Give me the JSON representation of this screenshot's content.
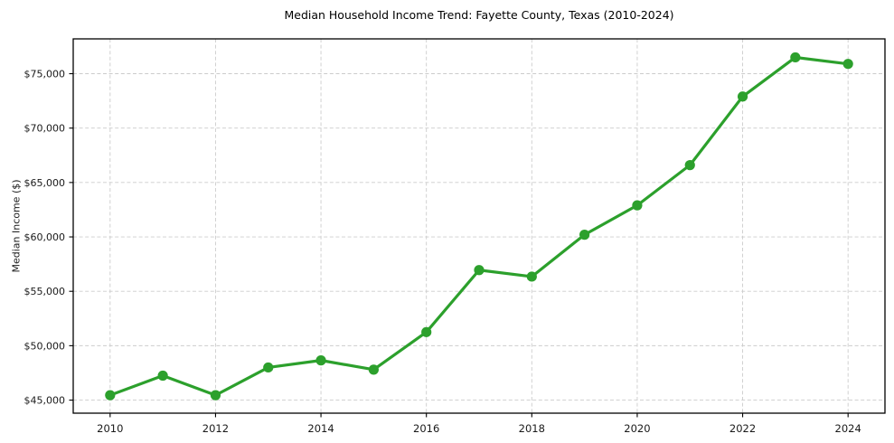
{
  "chart_data": {
    "type": "line",
    "title": "Median Household Income Trend: Fayette County, Texas (2010-2024)",
    "xlabel": "",
    "ylabel": "Median Income ($)",
    "x": [
      2010,
      2011,
      2012,
      2013,
      2014,
      2015,
      2016,
      2017,
      2018,
      2019,
      2020,
      2021,
      2022,
      2023,
      2024
    ],
    "series": [
      {
        "name": "Median Household Income",
        "values": [
          45450,
          47250,
          45450,
          48000,
          48650,
          47800,
          51250,
          56950,
          56350,
          60200,
          62900,
          66600,
          72900,
          76500,
          75900
        ]
      }
    ],
    "xticks": {
      "values": [
        2010,
        2012,
        2014,
        2016,
        2018,
        2020,
        2022,
        2024
      ],
      "labels": [
        "2010",
        "2012",
        "2014",
        "2016",
        "2018",
        "2020",
        "2022",
        "2024"
      ]
    },
    "yticks": {
      "values": [
        45000,
        50000,
        55000,
        60000,
        65000,
        70000,
        75000
      ],
      "labels": [
        "$45,000",
        "$50,000",
        "$55,000",
        "$60,000",
        "$65,000",
        "$70,000",
        "$75,000"
      ]
    },
    "xlim": [
      2009.3,
      2024.7
    ],
    "ylim": [
      43800,
      78200
    ],
    "grid": true,
    "grid_style": "dashed",
    "legend": false,
    "marker": "circle",
    "colors": {
      "line": "#2ca02c",
      "marker": "#2ca02c",
      "grid": "#cccccc",
      "axis": "#000000",
      "tick_text": "#1a1a1a",
      "title_text": "#000000",
      "background": "#ffffff"
    }
  }
}
